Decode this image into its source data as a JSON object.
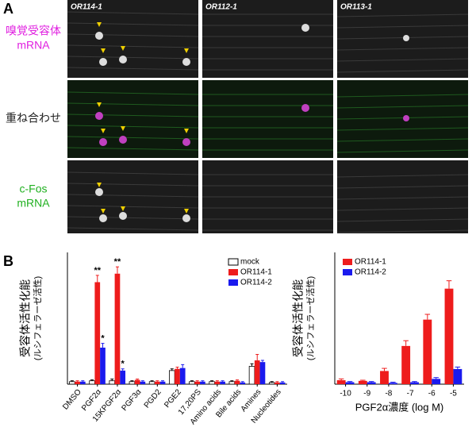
{
  "panel_a": {
    "label": "A",
    "columns": [
      "OR114-1",
      "OR112-1",
      "OR113-1"
    ],
    "rows": [
      [
        "嗅覚受容体",
        "mRNA"
      ],
      [
        "重ね合わせ"
      ],
      [
        "c-Fos",
        "mRNA"
      ]
    ]
  },
  "panel_b": {
    "label": "B"
  },
  "chart_data": [
    {
      "type": "bar",
      "ylabel": [
        "受容体活性化能",
        "(ルシフェラーゼ活性)"
      ],
      "categories": [
        "DMSO",
        "PGF2α",
        "15KPGF2α",
        "PGF3α",
        "PGD2",
        "PGE2",
        "17,20PS",
        "Amino acids",
        "Bile acids",
        "Amines",
        "Nucleotides"
      ],
      "series": [
        {
          "name": "mock",
          "color": "#ffffff",
          "values": [
            0.3,
            0.4,
            0.4,
            0.3,
            0.3,
            1.6,
            0.3,
            0.3,
            0.3,
            2.1,
            0.2
          ],
          "errors": [
            0.1,
            0.1,
            0.2,
            0.1,
            0.1,
            0.2,
            0.1,
            0.1,
            0.1,
            0.3,
            0.1
          ]
        },
        {
          "name": "OR114-1",
          "color": "#ee1c1c",
          "values": [
            0.3,
            12,
            13,
            0.5,
            0.3,
            1.8,
            0.3,
            0.3,
            0.4,
            2.8,
            0.2
          ],
          "errors": [
            0.1,
            0.8,
            0.8,
            0.1,
            0.1,
            0.2,
            0.1,
            0.1,
            0.1,
            0.7,
            0.1
          ]
        },
        {
          "name": "OR114-2",
          "color": "#1a1aee",
          "values": [
            0.3,
            4.3,
            1.6,
            0.3,
            0.3,
            1.9,
            0.3,
            0.3,
            0.2,
            2.6,
            0.2
          ],
          "errors": [
            0.1,
            0.5,
            0.2,
            0.1,
            0.1,
            0.4,
            0.1,
            0.1,
            0.1,
            0.2,
            0.1
          ]
        }
      ],
      "annotations": [
        {
          "text": "**",
          "series": 1,
          "category": 1
        },
        {
          "text": "*",
          "series": 2,
          "category": 1
        },
        {
          "text": "**",
          "series": 1,
          "category": 2
        },
        {
          "text": "*",
          "series": 2,
          "category": 2
        }
      ],
      "ylim": [
        0,
        15.5
      ]
    },
    {
      "type": "bar",
      "ylabel": [
        "受容体活性化能",
        "(ルシフェラーゼ活性)"
      ],
      "xlabel": "PGF2α濃度 (log M)",
      "categories": [
        "-10",
        "-9",
        "-8",
        "-7",
        "-6",
        "-5"
      ],
      "series": [
        {
          "name": "OR114-1",
          "color": "#ee1c1c",
          "values": [
            0.6,
            0.5,
            2.0,
            5.8,
            9.8,
            14.5
          ],
          "errors": [
            0.2,
            0.1,
            0.4,
            0.8,
            0.8,
            1.2
          ]
        },
        {
          "name": "OR114-2",
          "color": "#1a1aee",
          "values": [
            0.3,
            0.3,
            0.2,
            0.3,
            0.8,
            2.3
          ],
          "errors": [
            0.1,
            0.1,
            0.1,
            0.1,
            0.2,
            0.3
          ]
        }
      ],
      "ylim": [
        0,
        20
      ]
    }
  ]
}
